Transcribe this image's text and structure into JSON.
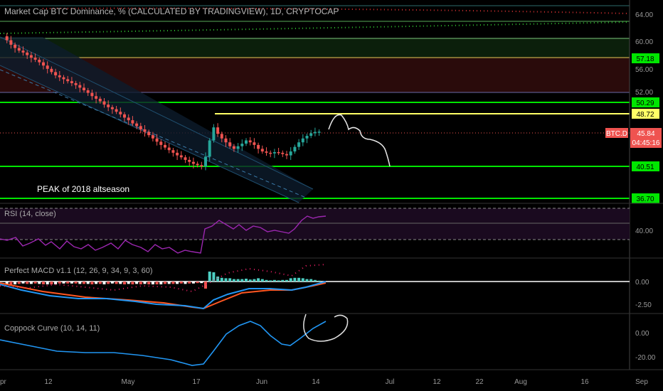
{
  "header": {
    "title": "Market Cap BTC Dominance, % (CALCULATED BY TRADINGVIEW), 1D, CRYPTOCAP"
  },
  "annotations": {
    "peak_label": "PEAK of 2018 altseason"
  },
  "price_axis": {
    "ticks": [
      "64.00",
      "60.00",
      "56.00",
      "52.00"
    ],
    "level_labels": [
      "57.18",
      "50.29",
      "48.72",
      "40.51",
      "36.70"
    ],
    "symbol_tag": "BTC.D",
    "last_value": "45.84",
    "countdown": "04:45:16"
  },
  "panes": {
    "rsi": {
      "title": "RSI (14, close)",
      "tick": "40.00"
    },
    "macd": {
      "title": "Perfect MACD v1.1 (12, 26, 9, 34, 9, 3, 60)",
      "ticks": [
        "0.00",
        "-2.50"
      ]
    },
    "coppock": {
      "title": "Coppock Curve (10, 14, 11)",
      "ticks": [
        "0.00",
        "-20.00"
      ]
    }
  },
  "time_axis": {
    "labels": [
      "pr",
      "12",
      "May",
      "17",
      "Jun",
      "14",
      "Jul",
      "12",
      "22",
      "Aug",
      "16",
      "Sep"
    ]
  },
  "colors": {
    "background": "#000000",
    "level_green": "#00e600",
    "level_yellow": "#ffff66",
    "candle_up": "#26a69a",
    "candle_down": "#ef5350",
    "rsi_line": "#9c27b0",
    "macd_line": "#2196f3",
    "signal_line": "#ff5722",
    "coppock_line": "#2196f3",
    "last_price": "#ef5350"
  },
  "chart_data": {
    "type": "candlestick",
    "title": "Market Cap BTC Dominance, % (CALCULATED BY TRADINGVIEW), 1D, CRYPTOCAP",
    "horizontal_levels": [
      57.18,
      50.29,
      48.72,
      40.51,
      36.7
    ],
    "last_value": 45.84,
    "close_path": [
      60.5,
      59.9,
      59.2,
      58.7,
      58.3,
      58.0,
      57.6,
      57.2,
      56.9,
      56.5,
      56.0,
      55.5,
      55.0,
      54.5,
      54.2,
      53.9,
      53.6,
      53.3,
      53.0,
      52.6,
      52.2,
      51.8,
      51.3,
      50.9,
      50.5,
      50.0,
      49.6,
      49.3,
      48.9,
      48.5,
      48.0,
      47.6,
      47.1,
      46.7,
      46.2,
      45.8,
      45.3,
      44.8,
      44.3,
      43.8,
      43.4,
      43.0,
      42.6,
      42.2,
      41.9,
      41.5,
      41.2,
      40.9,
      40.7,
      40.5,
      42.0,
      44.5,
      46.5,
      45.5,
      44.8,
      44.2,
      43.6,
      43.2,
      43.6,
      44.0,
      44.5,
      44.2,
      43.8,
      43.2,
      42.8,
      42.6,
      42.5,
      42.7,
      42.6,
      42.4,
      42.2,
      42.8,
      43.5,
      44.2,
      44.8,
      45.2,
      45.6,
      45.8,
      45.84
    ]
  }
}
